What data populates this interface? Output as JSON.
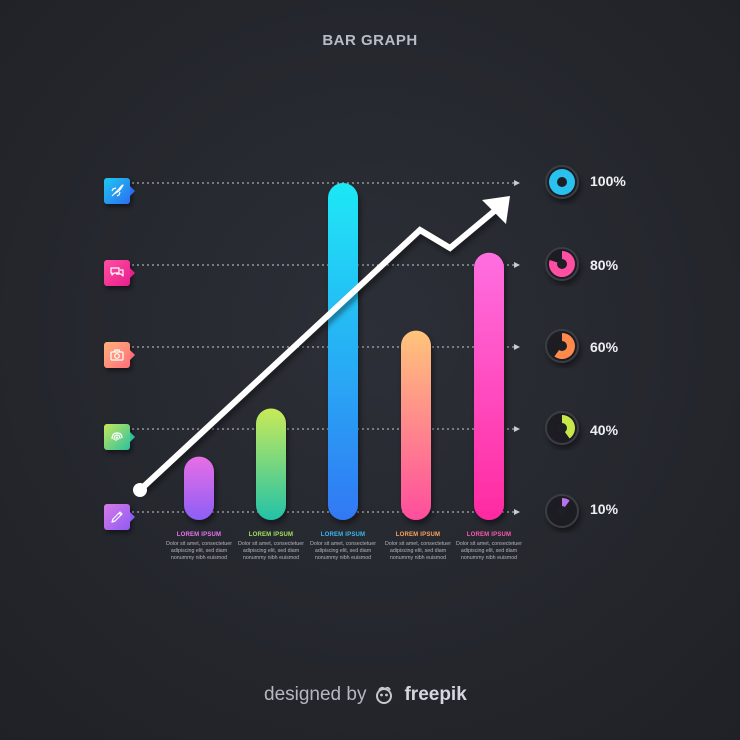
{
  "title": "BAR GRAPH",
  "footer": {
    "designed_by": "designed by",
    "brand": "freepik"
  },
  "icons": [
    {
      "name": "rocket-icon",
      "colors": [
        "#1fc8f0",
        "#2b6ff0"
      ]
    },
    {
      "name": "chat-bubbles-icon",
      "colors": [
        "#ff4fa0",
        "#e81f8e"
      ]
    },
    {
      "name": "camera-icon",
      "colors": [
        "#ffb27a",
        "#ff6f7a"
      ]
    },
    {
      "name": "fingerprint-icon",
      "colors": [
        "#c6e85a",
        "#2cc0a0"
      ]
    },
    {
      "name": "pencil-icon",
      "colors": [
        "#d87ae8",
        "#8f5cf4"
      ]
    }
  ],
  "percent_markers": [
    {
      "label": "100%",
      "value": 100,
      "color": "#29c2ee"
    },
    {
      "label": "80%",
      "value": 80,
      "color": "#ff4fa3"
    },
    {
      "label": "60%",
      "value": 60,
      "color": "#ff8a4c"
    },
    {
      "label": "40%",
      "value": 40,
      "color": "#c8e84a"
    },
    {
      "label": "10%",
      "value": 10,
      "color": "#b872ea"
    }
  ],
  "chart_data": {
    "type": "bar",
    "title": "BAR GRAPH",
    "categories": [
      "LOREM IPSUM",
      "LOREM IPSUM",
      "LOREM IPSUM",
      "LOREM IPSUM",
      "LOREM IPSUM"
    ],
    "values": [
      30,
      45,
      100,
      64,
      83
    ],
    "ylim": [
      0,
      100
    ],
    "gridlines": [
      10,
      40,
      60,
      80,
      100
    ],
    "bar_gradients": [
      [
        "#e86ee6",
        "#8c5ff5"
      ],
      [
        "#c8ea58",
        "#23c2a8"
      ],
      [
        "#1ee8f6",
        "#3178f4"
      ],
      [
        "#ffc47a",
        "#ff4d9e"
      ],
      [
        "#ff6fe0",
        "#ff2aa0"
      ]
    ],
    "label_colors": [
      "#e776f4",
      "#a2e25c",
      "#3ab9f5",
      "#ffa45c",
      "#ff58b0"
    ],
    "descriptions": [
      "Dolor sit amet, consectetuer adipiscing elit, sed diam nonummy nibh euismod",
      "Dolor sit amet, consectetuer adipiscing elit, sed diam nonummy nibh euismod",
      "Dolor sit amet, consectetuer adipiscing elit, sed diam nonummy nibh euismod",
      "Dolor sit amet, consectetuer adipiscing elit, sed diam nonummy nibh euismod",
      "Dolor sit amet, consectetuer adipiscing elit, sed diam nonummy nibh euismod"
    ],
    "trend_line": {
      "direction": "up",
      "color": "#ffffff"
    },
    "grid": true,
    "legend": "right"
  }
}
